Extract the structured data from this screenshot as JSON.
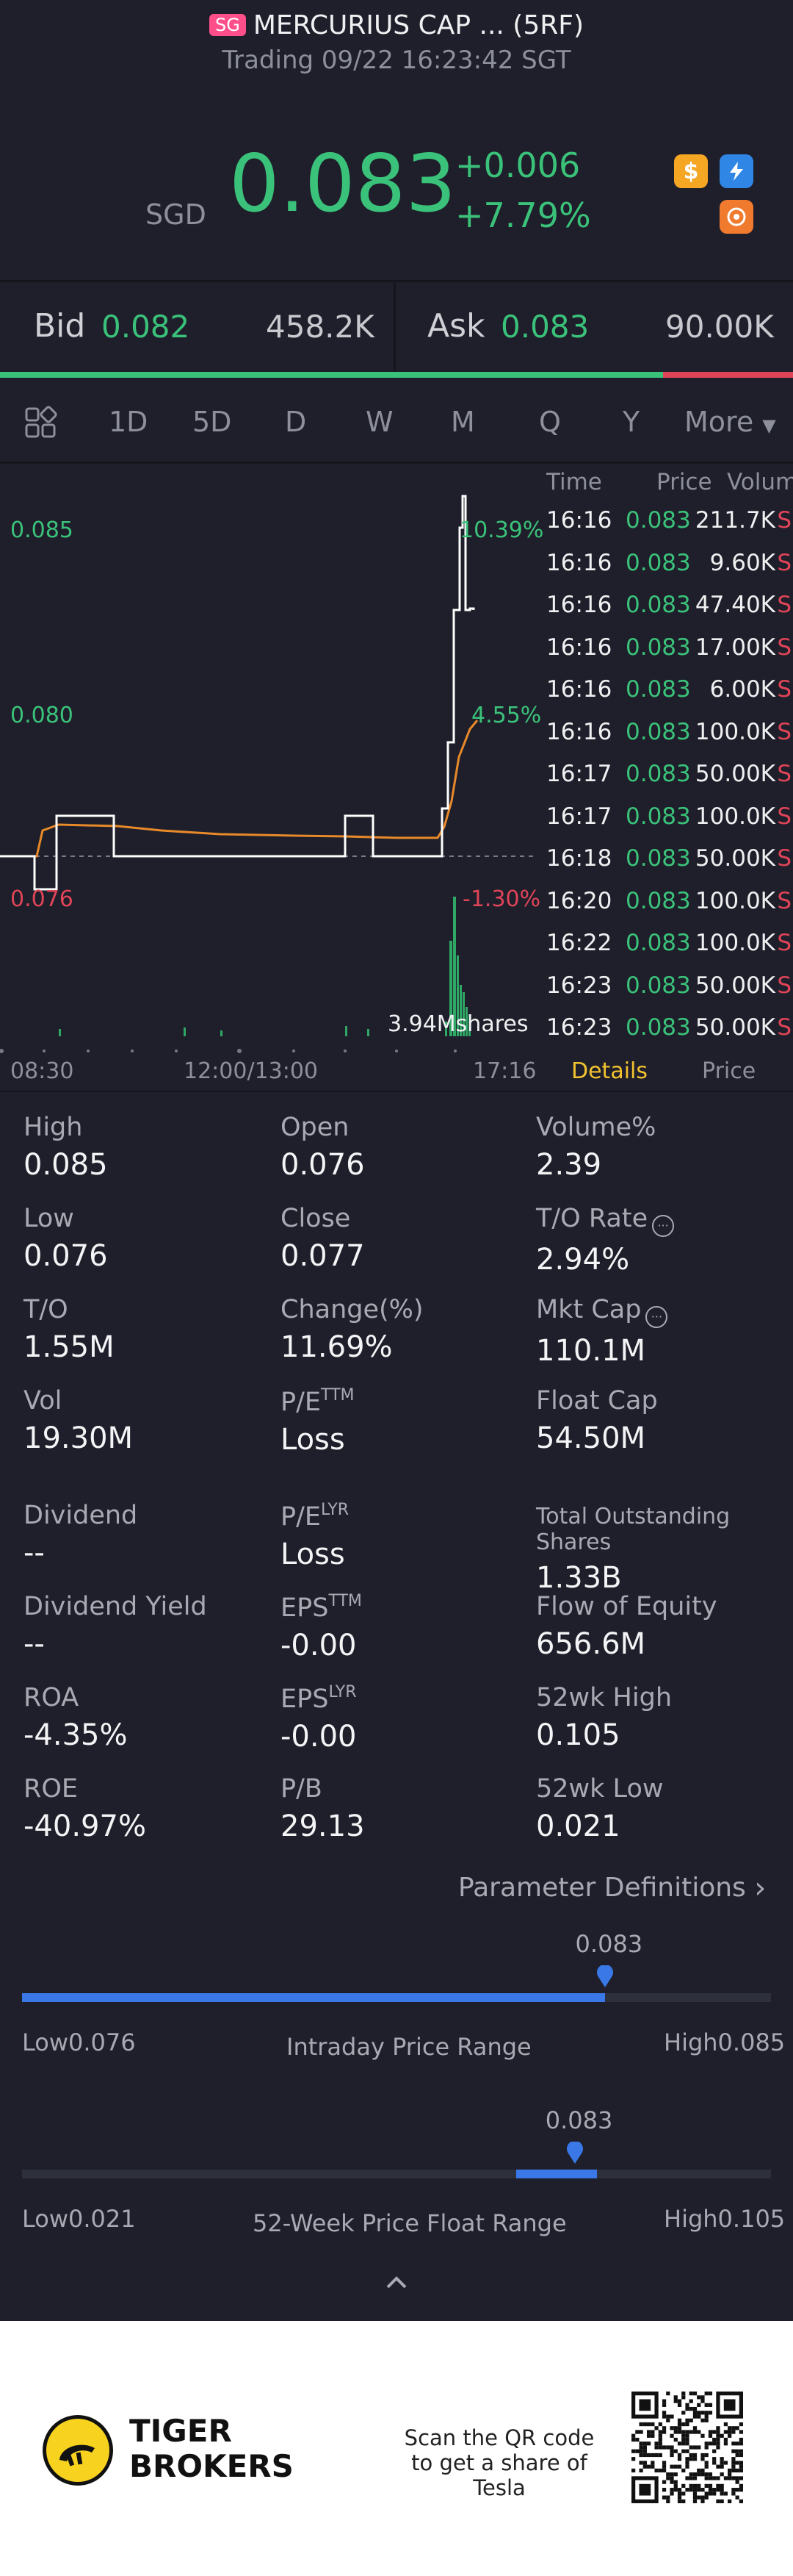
{
  "header": {
    "market_tag": "SG",
    "title": "MERCURIUS CAP ... (5RF)",
    "subtitle": "Trading 09/22 16:23:42 SGT",
    "currency": "SGD",
    "price": "0.083",
    "change": "+0.006",
    "change_pct": "+7.79%",
    "icons": [
      "dollar-icon",
      "flash-icon",
      "orange-badge-icon"
    ]
  },
  "quote": {
    "bid_label": "Bid",
    "bid_price": "0.082",
    "bid_size": "458.2K",
    "ask_label": "Ask",
    "ask_price": "0.083",
    "ask_size": "90.00K",
    "bid_ratio": 0.836
  },
  "tabs": [
    "1D",
    "5D",
    "D",
    "W",
    "M",
    "Q",
    "Y",
    "More"
  ],
  "active_tab": "1D",
  "chart": {
    "y_labels": {
      "high": "0.085",
      "mid": "0.080",
      "low": "0.076"
    },
    "pct_labels": {
      "high": "10.39%",
      "mid": "4.55%",
      "low": "-1.30%"
    },
    "volume_label": "3.94Mshares",
    "x_labels": [
      "08:30",
      "12:00/13:00",
      "17:16"
    ]
  },
  "ticks": {
    "headers": {
      "time": "Time",
      "price": "Price",
      "volume": "Volume"
    },
    "rows": [
      {
        "time": "16:16",
        "price": "0.083",
        "vol": "211.7K",
        "side": "S"
      },
      {
        "time": "16:16",
        "price": "0.083",
        "vol": "9.60K",
        "side": "S"
      },
      {
        "time": "16:16",
        "price": "0.083",
        "vol": "47.40K",
        "side": "S"
      },
      {
        "time": "16:16",
        "price": "0.083",
        "vol": "17.00K",
        "side": "S"
      },
      {
        "time": "16:16",
        "price": "0.083",
        "vol": "6.00K",
        "side": "S"
      },
      {
        "time": "16:16",
        "price": "0.083",
        "vol": "100.0K",
        "side": "S"
      },
      {
        "time": "16:17",
        "price": "0.083",
        "vol": "50.00K",
        "side": "S"
      },
      {
        "time": "16:17",
        "price": "0.083",
        "vol": "100.0K",
        "side": "S"
      },
      {
        "time": "16:18",
        "price": "0.083",
        "vol": "50.00K",
        "side": "S"
      },
      {
        "time": "16:20",
        "price": "0.083",
        "vol": "100.0K",
        "side": "S"
      },
      {
        "time": "16:22",
        "price": "0.083",
        "vol": "100.0K",
        "side": "S"
      },
      {
        "time": "16:23",
        "price": "0.083",
        "vol": "50.00K",
        "side": "S"
      },
      {
        "time": "16:23",
        "price": "0.083",
        "vol": "50.00K",
        "side": "S"
      }
    ],
    "tab_details": "Details",
    "tab_price": "Price"
  },
  "stats": {
    "high": {
      "k": "High",
      "v": "0.085"
    },
    "open": {
      "k": "Open",
      "v": "0.076"
    },
    "volume_pct": {
      "k": "Volume%",
      "v": "2.39"
    },
    "low": {
      "k": "Low",
      "v": "0.076"
    },
    "close": {
      "k": "Close",
      "v": "0.077"
    },
    "to_rate": {
      "k": "T/O Rate",
      "v": "2.94%"
    },
    "to": {
      "k": "T/O",
      "v": "1.55M"
    },
    "change_pct": {
      "k": "Change(%)",
      "v": "11.69%"
    },
    "mkt_cap": {
      "k": "Mkt Cap",
      "v": "110.1M"
    },
    "vol": {
      "k": "Vol",
      "v": "19.30M"
    },
    "pe_ttm": {
      "k": "P/E",
      "sup": "TTM",
      "v": "Loss"
    },
    "float_cap": {
      "k": "Float Cap",
      "v": "54.50M"
    },
    "dividend": {
      "k": "Dividend",
      "v": "--"
    },
    "pe_lyr": {
      "k": "P/E",
      "sup": "LYR",
      "v": "Loss"
    },
    "total_shares": {
      "k": "Total Outstanding Shares",
      "v": "1.33B"
    },
    "div_yield": {
      "k": "Dividend Yield",
      "v": "--"
    },
    "eps_ttm": {
      "k": "EPS",
      "sup": "TTM",
      "v": "-0.00"
    },
    "flow_equity": {
      "k": "Flow of Equity",
      "v": "656.6M"
    },
    "roa": {
      "k": "ROA",
      "v": "-4.35%"
    },
    "eps_lyr": {
      "k": "EPS",
      "sup": "LYR",
      "v": "-0.00"
    },
    "wk52_high": {
      "k": "52wk High",
      "v": "0.105"
    },
    "roe": {
      "k": "ROE",
      "v": "-40.97%"
    },
    "pb": {
      "k": "P/B",
      "v": "29.13"
    },
    "wk52_low": {
      "k": "52wk Low",
      "v": "0.021"
    }
  },
  "param_defs": "Parameter Definitions",
  "intraday_range": {
    "title": "Intraday Price Range",
    "low_label": "Low",
    "low": "0.076",
    "high_label": "High",
    "high": "0.085",
    "current": "0.083",
    "position": 0.778
  },
  "week52_range": {
    "title": "52-Week Price Float Range",
    "low_label": "Low",
    "low": "0.021",
    "high_label": "High",
    "high": "0.105",
    "current": "0.083",
    "position": 0.738
  },
  "footer": {
    "brand_line1": "TIGER",
    "brand_line2": "BROKERS",
    "scan_text": "Scan the QR code to get a share of Tesla"
  },
  "colors": {
    "up": "#3bc27a",
    "down": "#e04458",
    "accent": "#3a78e8",
    "active": "#f2c230"
  }
}
